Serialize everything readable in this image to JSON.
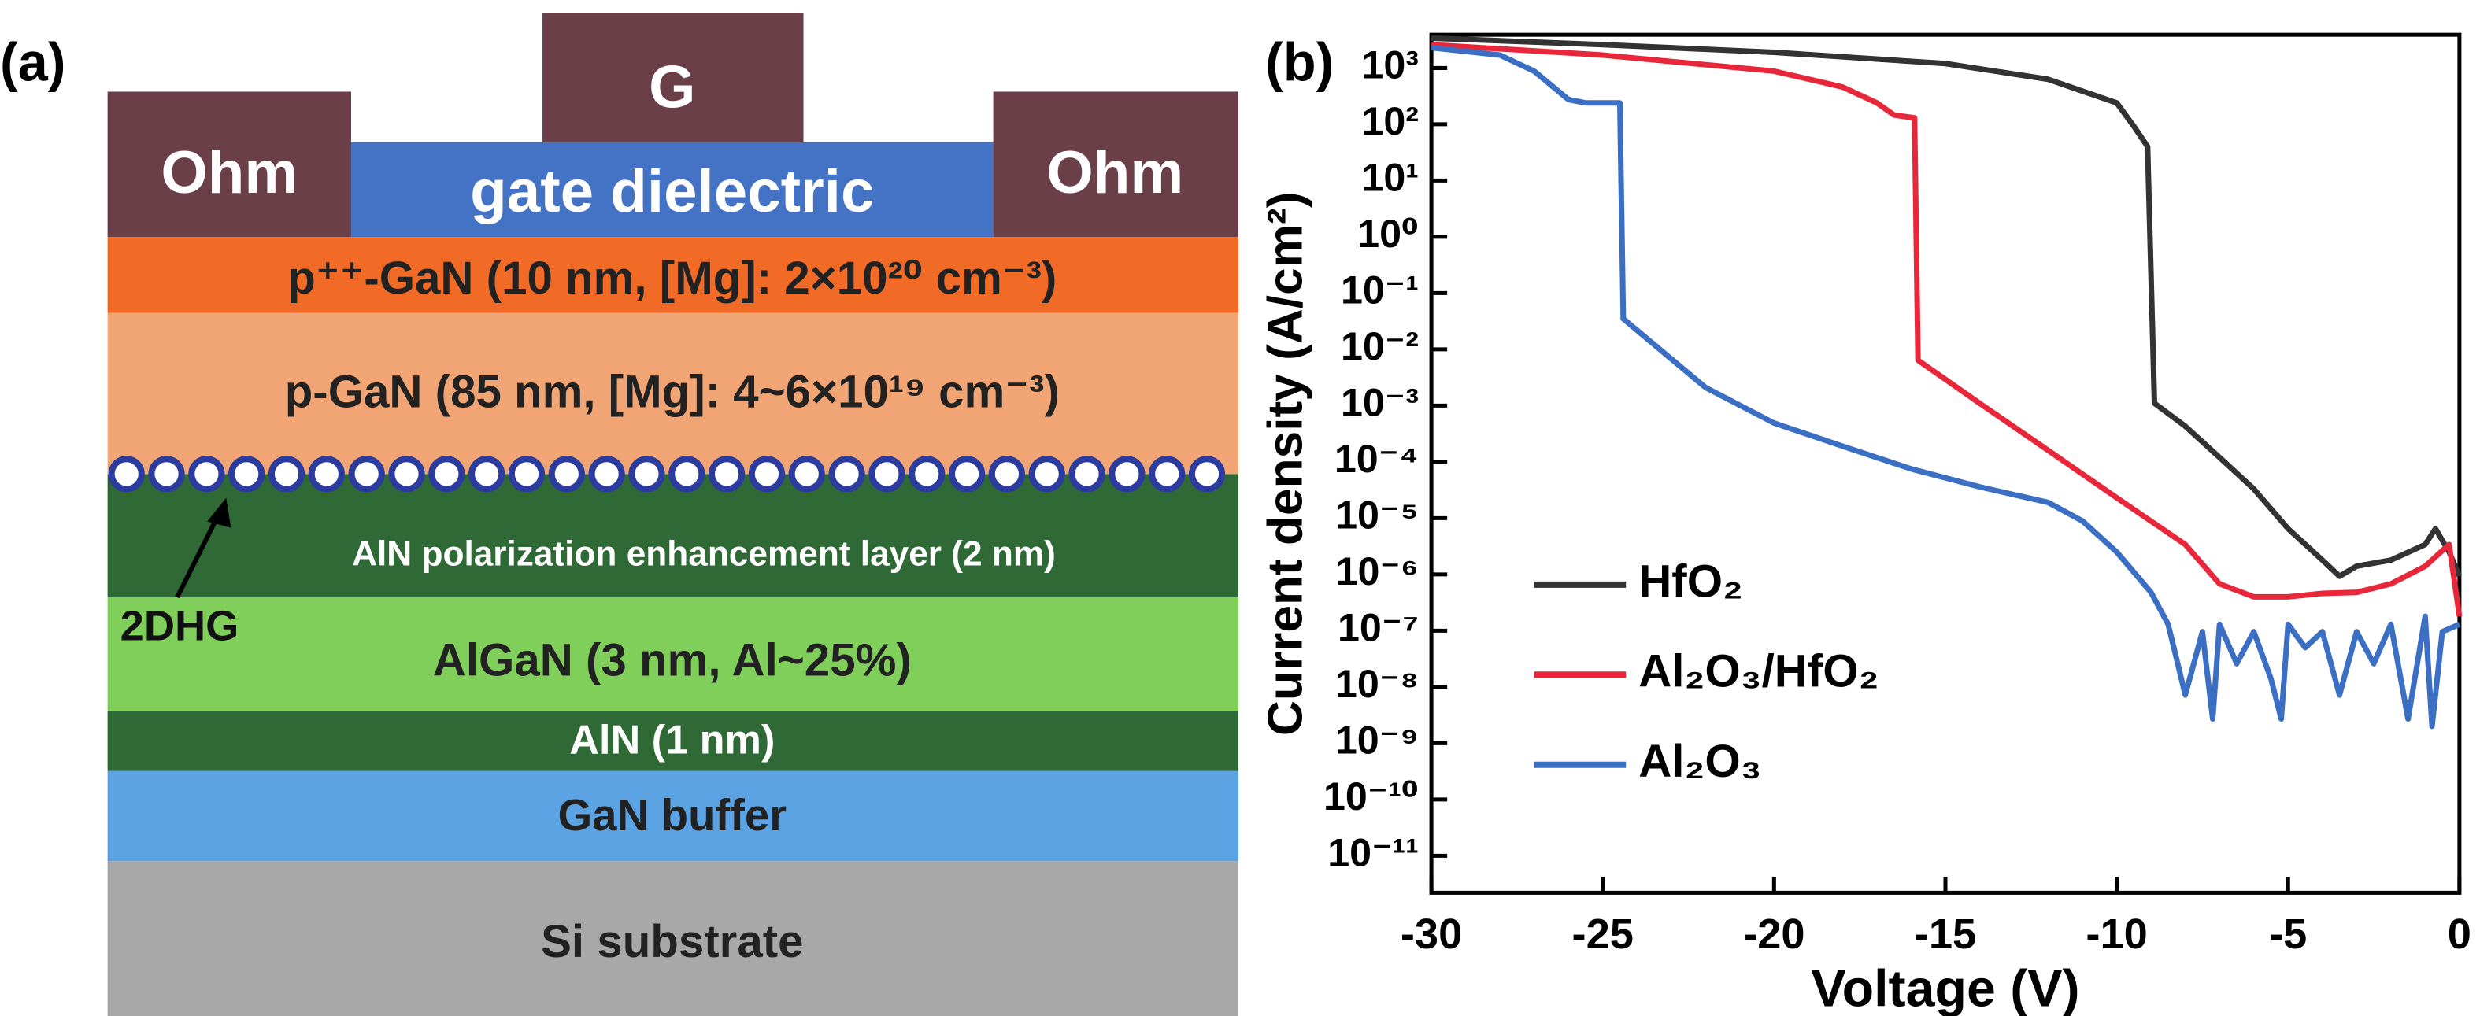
{
  "diagram": {
    "panel_label": "(a)",
    "gate": "G",
    "ohm_left": "Ohm",
    "ohm_right": "Ohm",
    "gate_dielectric": "gate dielectric",
    "layers": [
      {
        "label": "p⁺⁺-GaN (10 nm, [Mg]: 2×10²⁰ cm⁻³)"
      },
      {
        "label": "p-GaN (85 nm, [Mg]: 4~6×10¹⁹ cm⁻³)"
      },
      {
        "label": "AlN polarization enhancement layer (2 nm)"
      },
      {
        "label": "AlGaN (3 nm, Al~25%)"
      },
      {
        "label": "AlN (1 nm)"
      },
      {
        "label": "GaN buffer"
      },
      {
        "label": "Si substrate"
      }
    ],
    "annotation": "2DHG"
  },
  "chart_data": {
    "type": "line",
    "panel_label": "(b)",
    "x_label": "Voltage (V)",
    "y_label": "Current density (A/cm²)",
    "xlim": [
      -30,
      0
    ],
    "xticks": [
      -30,
      -25,
      -20,
      -15,
      -10,
      -5,
      0
    ],
    "ylim": [
      2.2e-12,
      3900
    ],
    "y_scale": "log",
    "yticks": [
      {
        "value": 1000.0,
        "label": "10³"
      },
      {
        "value": 100.0,
        "label": "10²"
      },
      {
        "value": 10.0,
        "label": "10¹"
      },
      {
        "value": 1,
        "label": "10⁰"
      },
      {
        "value": 0.1,
        "label": "10⁻¹"
      },
      {
        "value": 0.01,
        "label": "10⁻²"
      },
      {
        "value": 0.001,
        "label": "10⁻³"
      },
      {
        "value": 0.0001,
        "label": "10⁻⁴"
      },
      {
        "value": 1e-05,
        "label": "10⁻⁵"
      },
      {
        "value": 1e-06,
        "label": "10⁻⁶"
      },
      {
        "value": 1e-07,
        "label": "10⁻⁷"
      },
      {
        "value": 1e-08,
        "label": "10⁻⁸"
      },
      {
        "value": 1e-09,
        "label": "10⁻⁹"
      },
      {
        "value": 1e-10,
        "label": "10⁻¹⁰"
      },
      {
        "value": 1e-11,
        "label": "10⁻¹¹"
      }
    ],
    "legend": "lower left",
    "series": [
      {
        "name": "HfO₂",
        "color": "#333333",
        "x": [
          -30,
          -25,
          -20,
          -15,
          -12,
          -10,
          -9.5,
          -9.1,
          -8.9,
          -8,
          -7,
          -6,
          -5,
          -4,
          -3.5,
          -3,
          -2,
          -1,
          -0.7,
          -0.3,
          0
        ],
        "values": [
          3400,
          2600,
          1900,
          1200,
          630,
          240,
          92,
          40,
          0.0011,
          0.00043,
          0.00012,
          3.3e-05,
          6.5e-06,
          1.8e-06,
          9.3e-07,
          1.4e-06,
          1.8e-06,
          3.4e-06,
          6.5e-06,
          2.5e-06,
          9.3e-07
        ]
      },
      {
        "name": "Al₂O₃/HfO₂",
        "color": "#e8283a",
        "x": [
          -30,
          -25,
          -20,
          -18,
          -17,
          -16.5,
          -15.9,
          -15.8,
          -14,
          -12,
          -10,
          -8,
          -7,
          -6,
          -5,
          -4,
          -3,
          -2,
          -1,
          -0.3,
          0
        ],
        "values": [
          2600,
          1700,
          880,
          460,
          240,
          146,
          130,
          0.0064,
          0.0011,
          0.00016,
          2.3e-05,
          3.4e-06,
          6.8e-07,
          4e-07,
          4e-07,
          4.6e-07,
          4.8e-07,
          6.8e-07,
          1.4e-06,
          3.4e-06,
          1.8e-07
        ]
      },
      {
        "name": "Al₂O₃",
        "color": "#3a6fc4",
        "x": [
          -30,
          -28,
          -27,
          -26,
          -25.5,
          -24.5,
          -24.4,
          -22,
          -20,
          -18,
          -16,
          -14,
          -12,
          -11,
          -10,
          -9,
          -8.5,
          -8,
          -7.5,
          -7.2,
          -7,
          -6.5,
          -6,
          -5.5,
          -5.2,
          -5,
          -4.5,
          -4,
          -3.5,
          -3,
          -2.5,
          -2,
          -1.5,
          -1,
          -0.8,
          -0.5,
          0
        ],
        "values": [
          2300,
          1700,
          880,
          275,
          240,
          240,
          0.035,
          0.0021,
          0.00049,
          0.00019,
          7.5e-05,
          3.6e-05,
          1.9e-05,
          8.9e-06,
          2.5e-06,
          4.8e-07,
          1.3e-07,
          7.2e-09,
          9.6e-08,
          2.7e-09,
          1.3e-07,
          2.6e-08,
          9.6e-08,
          1.4e-08,
          2.7e-09,
          1.3e-07,
          5e-08,
          9.6e-08,
          7.2e-09,
          9.6e-08,
          2.6e-08,
          1.3e-07,
          2.7e-09,
          1.8e-07,
          2e-09,
          9.6e-08,
          1.3e-07
        ]
      }
    ]
  }
}
